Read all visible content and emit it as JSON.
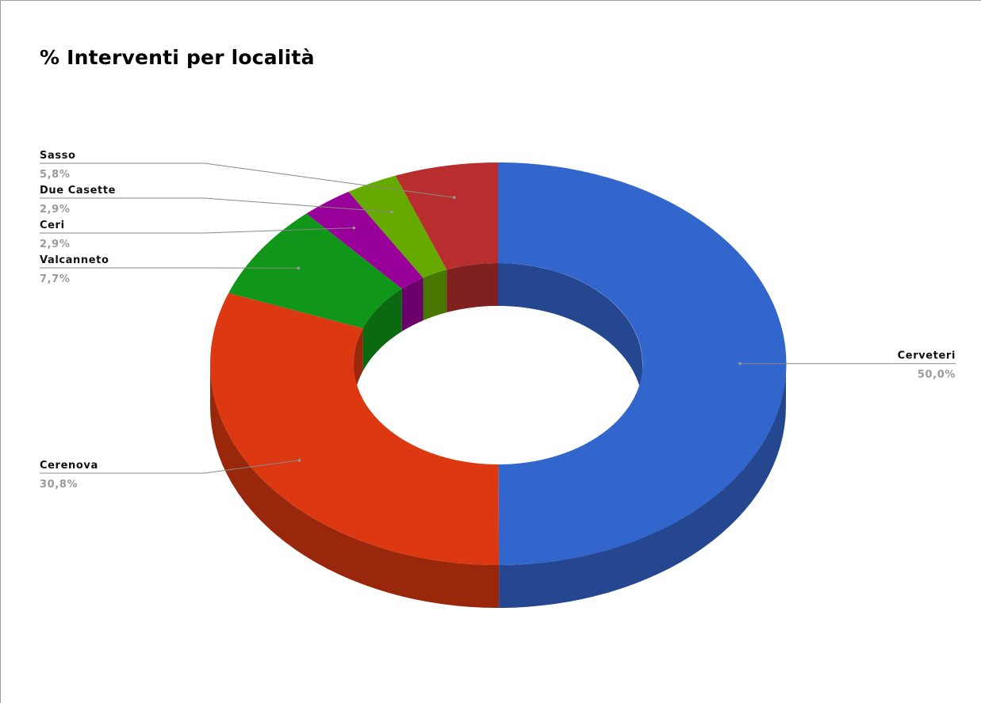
{
  "chart_data": {
    "type": "pie",
    "variant": "3d-donut",
    "title": "% Interventi per località",
    "slices": [
      {
        "label": "Cerveteri",
        "value_label": "50,0%",
        "value": 50.0,
        "color": "#3366CC",
        "side_color": "#24478F"
      },
      {
        "label": "Cerenova",
        "value_label": "30,8%",
        "value": 30.8,
        "color": "#DC3912",
        "side_color": "#99270C"
      },
      {
        "label": "Valcanneto",
        "value_label": "7,7%",
        "value": 7.7,
        "color": "#109618",
        "side_color": "#0B6910"
      },
      {
        "label": "Ceri",
        "value_label": "2,9%",
        "value": 2.9,
        "color": "#990099",
        "side_color": "#6B006B"
      },
      {
        "label": "Due Casette",
        "value_label": "2,9%",
        "value": 2.9,
        "color": "#66AA00",
        "side_color": "#477700"
      },
      {
        "label": "Sasso",
        "value_label": "5,8%",
        "value": 5.8,
        "color": "#B82E2E",
        "side_color": "#802020"
      }
    ],
    "legend": "none (labels beside slices)"
  }
}
